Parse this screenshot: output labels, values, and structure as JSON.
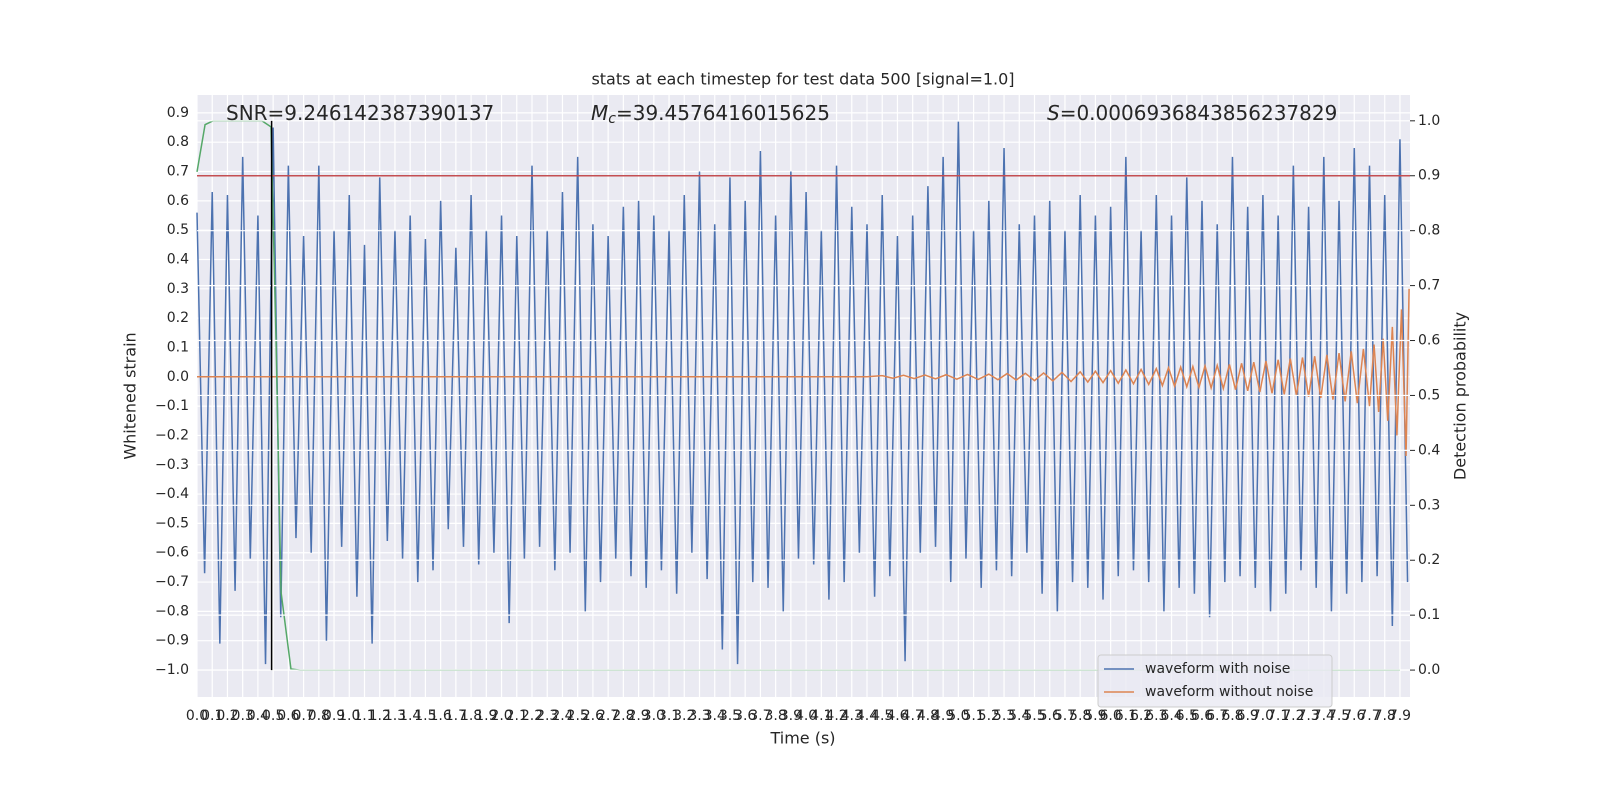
{
  "chart_data": {
    "type": "line",
    "title": "stats at each timestep for test data 500 [signal=1.0]",
    "xlabel": "Time (s)",
    "ylabel": "Whitened strain",
    "y2label": "Detection probability",
    "xlim": [
      0,
      7.966
    ],
    "ylim": [
      -1.092,
      0.961
    ],
    "y2lim": [
      -0.049,
      1.047
    ],
    "grid": true,
    "legend": "lower right",
    "xticks": [
      {
        "value": 0,
        "label": "0.0"
      },
      0.1,
      0.2,
      0.3,
      0.4,
      0.5,
      0.6,
      0.7,
      0.8,
      0.9,
      {
        "value": 1,
        "label": "1.0"
      },
      1.1,
      1.2,
      1.3,
      1.4,
      1.5,
      1.6,
      1.7,
      1.8,
      1.9,
      {
        "value": 2,
        "label": "2.0"
      },
      2.1,
      2.2,
      2.3,
      2.4,
      2.5,
      2.6,
      2.7,
      2.8,
      2.9,
      {
        "value": 3,
        "label": "3.0"
      },
      3.1,
      3.2,
      3.3,
      3.4,
      3.5,
      3.6,
      3.7,
      3.8,
      3.9,
      {
        "value": 4,
        "label": "4.0"
      },
      4.1,
      4.2,
      4.3,
      4.4,
      4.5,
      4.6,
      4.7,
      4.8,
      4.9,
      {
        "value": 5,
        "label": "5.0"
      },
      5.1,
      5.2,
      5.3,
      5.4,
      5.5,
      5.6,
      5.7,
      5.8,
      5.9,
      {
        "value": 6,
        "label": "6.0"
      },
      6.1,
      6.2,
      6.3,
      6.4,
      6.5,
      6.6,
      6.7,
      6.8,
      6.9,
      {
        "value": 7,
        "label": "7.0"
      },
      7.1,
      7.2,
      7.3,
      7.4,
      7.5,
      7.6,
      7.7,
      7.8,
      7.9
    ],
    "yticks": [
      {
        "value": -1,
        "label": "−1.0"
      },
      {
        "value": -0.9,
        "label": "−0.9"
      },
      {
        "value": -0.8,
        "label": "−0.8"
      },
      {
        "value": -0.7,
        "label": "−0.7"
      },
      {
        "value": -0.6,
        "label": "−0.6"
      },
      {
        "value": -0.5,
        "label": "−0.5"
      },
      {
        "value": -0.4,
        "label": "−0.4"
      },
      {
        "value": -0.3,
        "label": "−0.3"
      },
      {
        "value": -0.2,
        "label": "−0.2"
      },
      {
        "value": -0.1,
        "label": "−0.1"
      },
      {
        "value": 0,
        "label": "0.0"
      },
      0.1,
      0.2,
      0.3,
      0.4,
      0.5,
      0.6,
      0.7,
      0.8,
      0.9
    ],
    "y2ticks": [
      {
        "value": 0,
        "label": "0.0"
      },
      0.1,
      0.2,
      0.3,
      0.4,
      0.5,
      0.6,
      0.7,
      0.8,
      0.9,
      {
        "value": 1,
        "label": "1.0"
      }
    ],
    "series": [
      {
        "name": "waveform with noise",
        "color": "#4c72b0",
        "x": [
          0,
          0.05,
          0.1,
          0.15,
          0.2,
          0.25,
          0.3,
          0.35,
          0.4,
          0.45,
          0.5,
          0.55,
          0.6,
          0.65,
          0.7,
          0.75,
          0.8,
          0.85,
          0.9,
          0.95,
          1,
          1.05,
          1.1,
          1.15,
          1.2,
          1.25,
          1.3,
          1.35,
          1.4,
          1.45,
          1.5,
          1.55,
          1.6,
          1.65,
          1.7,
          1.75,
          1.8,
          1.85,
          1.9,
          1.95,
          2,
          2.05,
          2.1,
          2.15,
          2.2,
          2.25,
          2.3,
          2.35,
          2.4,
          2.45,
          2.5,
          2.55,
          2.6,
          2.65,
          2.7,
          2.75,
          2.8,
          2.85,
          2.9,
          2.95,
          3,
          3.05,
          3.1,
          3.15,
          3.2,
          3.25,
          3.3,
          3.35,
          3.4,
          3.45,
          3.5,
          3.55,
          3.6,
          3.65,
          3.7,
          3.75,
          3.8,
          3.85,
          3.9,
          3.95,
          4,
          4.05,
          4.1,
          4.15,
          4.2,
          4.25,
          4.3,
          4.35,
          4.4,
          4.45,
          4.5,
          4.55,
          4.6,
          4.65,
          4.7,
          4.75,
          4.8,
          4.85,
          4.9,
          4.95,
          5,
          5.05,
          5.1,
          5.15,
          5.2,
          5.25,
          5.3,
          5.35,
          5.4,
          5.45,
          5.5,
          5.55,
          5.6,
          5.65,
          5.7,
          5.75,
          5.8,
          5.85,
          5.9,
          5.95,
          6,
          6.05,
          6.1,
          6.15,
          6.2,
          6.25,
          6.3,
          6.35,
          6.4,
          6.45,
          6.5,
          6.55,
          6.6,
          6.65,
          6.7,
          6.75,
          6.8,
          6.85,
          6.9,
          6.95,
          7,
          7.05,
          7.1,
          7.15,
          7.2,
          7.25,
          7.3,
          7.35,
          7.4,
          7.45,
          7.5,
          7.55,
          7.6,
          7.65,
          7.7,
          7.75,
          7.8,
          7.85,
          7.9,
          7.95
        ],
        "values": [
          0.56,
          -0.67,
          0.63,
          -0.91,
          0.62,
          -0.73,
          0.75,
          -0.62,
          0.55,
          -0.98,
          0.85,
          -0.82,
          0.72,
          -0.55,
          0.48,
          -0.6,
          0.72,
          -0.9,
          0.5,
          -0.58,
          0.62,
          -0.75,
          0.45,
          -0.91,
          0.68,
          -0.56,
          0.5,
          -0.62,
          0.55,
          -0.7,
          0.47,
          -0.66,
          0.6,
          -0.52,
          0.44,
          -0.58,
          0.62,
          -0.64,
          0.5,
          -0.6,
          0.55,
          -0.84,
          0.48,
          -0.62,
          0.72,
          -0.58,
          0.5,
          -0.66,
          0.63,
          -0.6,
          0.75,
          -0.8,
          0.52,
          -0.7,
          0.48,
          -0.62,
          0.58,
          -0.68,
          0.6,
          -0.72,
          0.55,
          -0.66,
          0.5,
          -0.74,
          0.62,
          -0.6,
          0.7,
          -0.69,
          0.52,
          -0.93,
          0.68,
          -0.98,
          0.6,
          -0.7,
          0.77,
          -0.72,
          0.55,
          -0.8,
          0.7,
          -0.62,
          0.63,
          -0.64,
          0.5,
          -0.76,
          0.72,
          -0.7,
          0.58,
          -0.6,
          0.52,
          -0.75,
          0.62,
          -0.68,
          0.48,
          -0.97,
          0.55,
          -0.6,
          0.65,
          -0.58,
          0.75,
          -0.7,
          0.87,
          -0.62,
          0.5,
          -0.72,
          0.6,
          -0.66,
          0.78,
          -0.68,
          0.52,
          -0.6,
          0.55,
          -0.74,
          0.6,
          -0.8,
          0.5,
          -0.7,
          0.62,
          -0.72,
          0.55,
          -0.76,
          0.58,
          -0.68,
          0.75,
          -0.66,
          0.5,
          -0.7,
          0.62,
          -0.8,
          0.55,
          -0.72,
          0.68,
          -0.74,
          0.6,
          -0.82,
          0.52,
          -0.7,
          0.75,
          -0.68,
          0.58,
          -0.72,
          0.62,
          -0.8,
          0.55,
          -0.74,
          0.72,
          -0.66,
          0.58,
          -0.72,
          0.75,
          -0.8,
          0.6,
          -0.74,
          0.78,
          -0.7,
          0.72,
          -0.68,
          0.62,
          -0.85,
          0.81,
          -0.7
        ]
      },
      {
        "name": "waveform without noise",
        "color": "#dd8452",
        "x": [
          0,
          4.4,
          4.5,
          4.57,
          4.64,
          4.71,
          4.78,
          4.85,
          4.92,
          4.99,
          5.06,
          5.13,
          5.2,
          5.26,
          5.32,
          5.38,
          5.44,
          5.5,
          5.56,
          5.62,
          5.68,
          5.74,
          5.8,
          5.85,
          5.9,
          5.95,
          6,
          6.05,
          6.1,
          6.15,
          6.2,
          6.25,
          6.3,
          6.34,
          6.38,
          6.42,
          6.46,
          6.5,
          6.54,
          6.58,
          6.62,
          6.66,
          6.7,
          6.74,
          6.78,
          6.82,
          6.86,
          6.9,
          6.94,
          6.98,
          7.02,
          7.06,
          7.1,
          7.14,
          7.18,
          7.22,
          7.26,
          7.3,
          7.34,
          7.38,
          7.42,
          7.46,
          7.5,
          7.54,
          7.58,
          7.62,
          7.66,
          7.7,
          7.73,
          7.76,
          7.79,
          7.82,
          7.85,
          7.88,
          7.91,
          7.94,
          7.96
        ],
        "values": [
          0,
          0,
          0.004,
          -0.005,
          0.005,
          -0.006,
          0.006,
          -0.007,
          0.007,
          -0.008,
          0.008,
          -0.009,
          0.009,
          -0.01,
          0.011,
          -0.011,
          0.012,
          -0.013,
          0.013,
          -0.014,
          0.015,
          -0.016,
          0.017,
          -0.018,
          0.019,
          -0.02,
          0.021,
          -0.022,
          0.023,
          -0.024,
          0.025,
          -0.026,
          0.028,
          -0.03,
          0.031,
          -0.032,
          0.033,
          -0.034,
          0.035,
          -0.036,
          0.037,
          -0.038,
          0.039,
          -0.04,
          0.042,
          -0.044,
          0.046,
          -0.048,
          0.05,
          -0.052,
          0.054,
          -0.056,
          0.058,
          -0.06,
          0.062,
          -0.064,
          0.066,
          -0.068,
          0.07,
          -0.072,
          0.075,
          -0.078,
          0.081,
          -0.084,
          0.087,
          -0.09,
          0.095,
          -0.1,
          0.11,
          -0.12,
          0.13,
          -0.15,
          0.17,
          -0.2,
          0.23,
          -0.27,
          0.3
        ]
      },
      {
        "color": "#55a868",
        "axis": "y2",
        "x": [
          0,
          0.053,
          0.105,
          0.427,
          0.486,
          0.519,
          0.552,
          0.617,
          0.676,
          7.9
        ],
        "values": [
          0.907,
          0.993,
          1,
          1,
          0.989,
          0.6,
          0.142,
          0.002,
          0,
          0
        ]
      }
    ],
    "hlines": [
      {
        "value": 0.9,
        "axis": "y2",
        "color": "#c44e52"
      }
    ],
    "vlines": [
      {
        "value": 0.49,
        "axis": "y2",
        "span": [
          0,
          1
        ],
        "color": "#000000"
      }
    ],
    "annotations": [
      {
        "parts": [
          "SNR=9.246142387390137"
        ]
      },
      {
        "parts": [
          "M",
          "c",
          "=39.4576416015625"
        ]
      },
      {
        "parts": [
          "S",
          "=0.0006936843856237829"
        ]
      }
    ]
  }
}
